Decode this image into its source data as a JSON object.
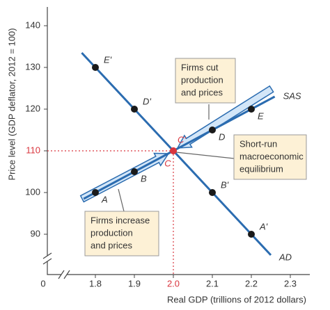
{
  "chart_data": {
    "type": "line",
    "x_label": "Real GDP (trillions of 2012 dollars)",
    "y_label": "Price level (GDP deflator, 2012 = 100)",
    "origin_label": "0",
    "x": [
      1.8,
      1.9,
      2.0,
      2.1,
      2.2
    ],
    "series": [
      {
        "name": "SAS",
        "color": "#2b6cb0",
        "values": [
          100,
          105,
          110,
          115,
          120
        ],
        "point_labels": [
          "A",
          "B",
          "C",
          "D",
          "E"
        ]
      },
      {
        "name": "AD",
        "color": "#2b6cb0",
        "values": [
          130,
          120,
          110,
          100,
          90
        ],
        "point_labels": [
          "E'",
          "D'",
          "C'",
          "B'",
          "A'"
        ]
      }
    ],
    "point_color": "#1a1a1a",
    "equilibrium": {
      "x": 2.0,
      "y": 110,
      "color": "#d9363e"
    },
    "xlim": [
      1.7,
      2.35
    ],
    "ylim": [
      85,
      145
    ],
    "xticks": [
      1.8,
      1.9,
      {
        "value": 2.0,
        "label": "2.0"
      },
      2.1,
      2.2,
      2.3
    ],
    "yticks": [
      90,
      100,
      110,
      120,
      130,
      140
    ],
    "annotations": [
      {
        "lines": [
          "Firms cut",
          "production",
          "and prices"
        ]
      },
      {
        "lines": [
          "Short-run",
          "macroeconomic",
          "equilibrium"
        ]
      },
      {
        "lines": [
          "Firms increase",
          "production",
          "and prices"
        ]
      }
    ]
  }
}
